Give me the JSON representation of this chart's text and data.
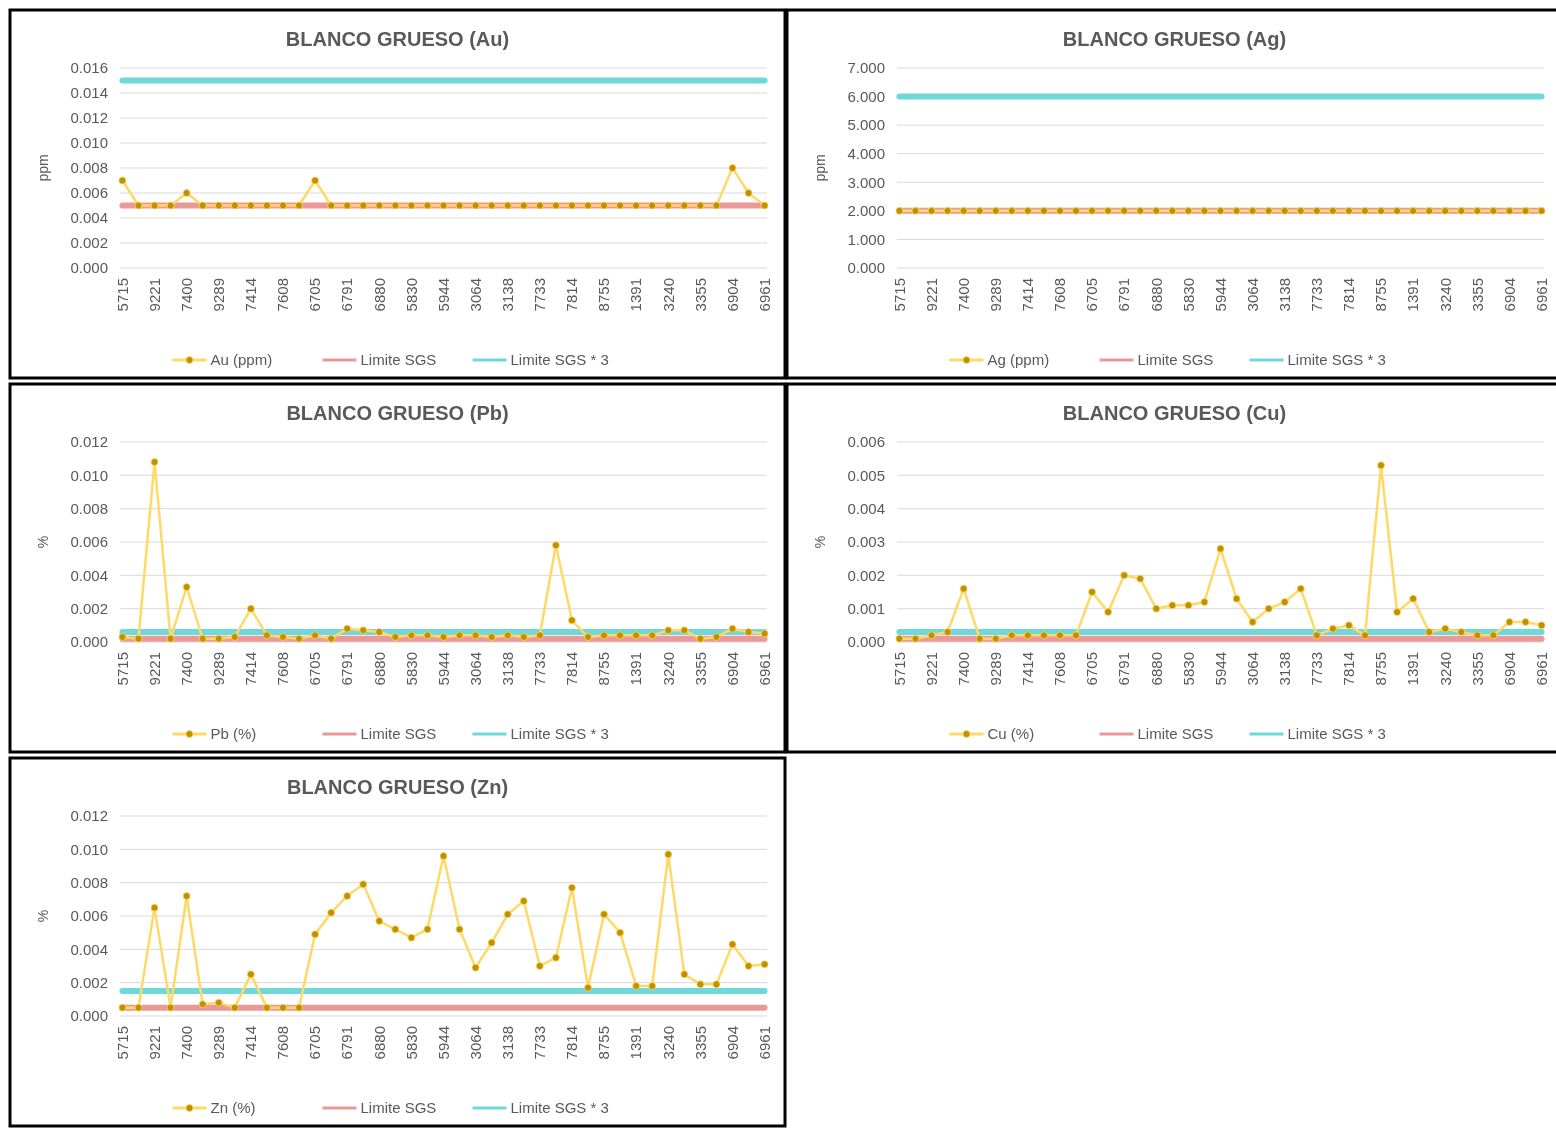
{
  "chart_data": [
    {
      "type": "line",
      "title": "BLANCO GRUESO (Au)",
      "ylabel": "ppm",
      "categories": [
        "5715",
        null,
        "9221",
        null,
        "7400",
        null,
        "9289",
        null,
        "7414",
        null,
        "7608",
        null,
        "6705",
        null,
        "6791",
        null,
        "6880",
        null,
        "5830",
        null,
        "5944",
        null,
        "3064",
        null,
        "3138",
        null,
        "7733",
        null,
        "7814",
        null,
        "8755",
        null,
        "1391",
        null,
        "3240",
        null,
        "3355",
        null,
        "6904",
        null,
        "6961"
      ],
      "ylim": [
        0,
        0.016
      ],
      "yticks": [
        {
          "value": 0,
          "label": "0.000"
        },
        {
          "value": 0.002,
          "label": "0.002"
        },
        {
          "value": 0.004,
          "label": "0.004"
        },
        {
          "value": 0.006,
          "label": "0.006"
        },
        {
          "value": 0.008,
          "label": "0.008"
        },
        {
          "value": 0.01,
          "label": "0.010"
        },
        {
          "value": 0.012,
          "label": "0.012"
        },
        {
          "value": 0.014,
          "label": "0.014"
        },
        {
          "value": 0.016,
          "label": "0.016"
        }
      ],
      "grid": "y",
      "legend": "bottom",
      "series": [
        {
          "name": "Au (ppm)",
          "color": "#ffd966",
          "marker": "circle",
          "values": [
            0.007,
            0.005,
            0.005,
            0.005,
            0.006,
            0.005,
            0.005,
            0.005,
            0.005,
            0.005,
            0.005,
            0.005,
            0.007,
            0.005,
            0.005,
            0.005,
            0.005,
            0.005,
            0.005,
            0.005,
            0.005,
            0.005,
            0.005,
            0.005,
            0.005,
            0.005,
            0.005,
            0.005,
            0.005,
            0.005,
            0.005,
            0.005,
            0.005,
            0.005,
            0.005,
            0.005,
            0.005,
            0.005,
            0.008,
            0.006,
            0.005
          ]
        },
        {
          "name": "Limite SGS",
          "color": "#ea9999",
          "marker": "none",
          "values": [
            0.005,
            0.005,
            0.005,
            0.005,
            0.005,
            0.005,
            0.005,
            0.005,
            0.005,
            0.005,
            0.005,
            0.005,
            0.005,
            0.005,
            0.005,
            0.005,
            0.005,
            0.005,
            0.005,
            0.005,
            0.005,
            0.005,
            0.005,
            0.005,
            0.005,
            0.005,
            0.005,
            0.005,
            0.005,
            0.005,
            0.005,
            0.005,
            0.005,
            0.005,
            0.005,
            0.005,
            0.005,
            0.005,
            0.005,
            0.005,
            0.005
          ]
        },
        {
          "name": "Limite SGS * 3",
          "color": "#6fd8da",
          "marker": "none",
          "values": [
            0.015,
            0.015,
            0.015,
            0.015,
            0.015,
            0.015,
            0.015,
            0.015,
            0.015,
            0.015,
            0.015,
            0.015,
            0.015,
            0.015,
            0.015,
            0.015,
            0.015,
            0.015,
            0.015,
            0.015,
            0.015,
            0.015,
            0.015,
            0.015,
            0.015,
            0.015,
            0.015,
            0.015,
            0.015,
            0.015,
            0.015,
            0.015,
            0.015,
            0.015,
            0.015,
            0.015,
            0.015,
            0.015,
            0.015,
            0.015,
            0.015
          ]
        }
      ]
    },
    {
      "type": "line",
      "title": "BLANCO GRUESO (Ag)",
      "ylabel": "ppm",
      "categories": [
        "5715",
        null,
        "9221",
        null,
        "7400",
        null,
        "9289",
        null,
        "7414",
        null,
        "7608",
        null,
        "6705",
        null,
        "6791",
        null,
        "6880",
        null,
        "5830",
        null,
        "5944",
        null,
        "3064",
        null,
        "3138",
        null,
        "7733",
        null,
        "7814",
        null,
        "8755",
        null,
        "1391",
        null,
        "3240",
        null,
        "3355",
        null,
        "6904",
        null,
        "6961"
      ],
      "ylim": [
        0,
        7
      ],
      "yticks": [
        {
          "value": 0,
          "label": "0.000"
        },
        {
          "value": 1,
          "label": "1.000"
        },
        {
          "value": 2,
          "label": "2.000"
        },
        {
          "value": 3,
          "label": "3.000"
        },
        {
          "value": 4,
          "label": "4.000"
        },
        {
          "value": 5,
          "label": "5.000"
        },
        {
          "value": 6,
          "label": "6.000"
        },
        {
          "value": 7,
          "label": "7.000"
        }
      ],
      "grid": "y",
      "legend": "bottom",
      "series": [
        {
          "name": "Ag (ppm)",
          "color": "#ffd966",
          "marker": "circle",
          "values": [
            2,
            2,
            2,
            2,
            2,
            2,
            2,
            2,
            2,
            2,
            2,
            2,
            2,
            2,
            2,
            2,
            2,
            2,
            2,
            2,
            2,
            2,
            2,
            2,
            2,
            2,
            2,
            2,
            2,
            2,
            2,
            2,
            2,
            2,
            2,
            2,
            2,
            2,
            2,
            2,
            2
          ]
        },
        {
          "name": "Limite SGS",
          "color": "#ea9999",
          "marker": "none",
          "values": [
            2,
            2,
            2,
            2,
            2,
            2,
            2,
            2,
            2,
            2,
            2,
            2,
            2,
            2,
            2,
            2,
            2,
            2,
            2,
            2,
            2,
            2,
            2,
            2,
            2,
            2,
            2,
            2,
            2,
            2,
            2,
            2,
            2,
            2,
            2,
            2,
            2,
            2,
            2,
            2,
            2
          ]
        },
        {
          "name": "Limite SGS * 3",
          "color": "#6fd8da",
          "marker": "none",
          "values": [
            6,
            6,
            6,
            6,
            6,
            6,
            6,
            6,
            6,
            6,
            6,
            6,
            6,
            6,
            6,
            6,
            6,
            6,
            6,
            6,
            6,
            6,
            6,
            6,
            6,
            6,
            6,
            6,
            6,
            6,
            6,
            6,
            6,
            6,
            6,
            6,
            6,
            6,
            6,
            6,
            6
          ]
        }
      ]
    },
    {
      "type": "line",
      "title": "BLANCO GRUESO (Pb)",
      "ylabel": "%",
      "categories": [
        "5715",
        null,
        "9221",
        null,
        "7400",
        null,
        "9289",
        null,
        "7414",
        null,
        "7608",
        null,
        "6705",
        null,
        "6791",
        null,
        "6880",
        null,
        "5830",
        null,
        "5944",
        null,
        "3064",
        null,
        "3138",
        null,
        "7733",
        null,
        "7814",
        null,
        "8755",
        null,
        "1391",
        null,
        "3240",
        null,
        "3355",
        null,
        "6904",
        null,
        "6961"
      ],
      "ylim": [
        0,
        0.012
      ],
      "yticks": [
        {
          "value": 0,
          "label": "0.000"
        },
        {
          "value": 0.002,
          "label": "0.002"
        },
        {
          "value": 0.004,
          "label": "0.004"
        },
        {
          "value": 0.006,
          "label": "0.006"
        },
        {
          "value": 0.008,
          "label": "0.008"
        },
        {
          "value": 0.01,
          "label": "0.010"
        },
        {
          "value": 0.012,
          "label": "0.012"
        }
      ],
      "grid": "y",
      "legend": "bottom",
      "series": [
        {
          "name": "Pb (%)",
          "color": "#ffd966",
          "marker": "circle",
          "values": [
            0.0003,
            0.0002,
            0.0108,
            0.0002,
            0.0033,
            0.0002,
            0.0002,
            0.0003,
            0.002,
            0.0004,
            0.0003,
            0.0002,
            0.0004,
            0.0002,
            0.0008,
            0.0007,
            0.0006,
            0.0003,
            0.0004,
            0.0004,
            0.0003,
            0.0004,
            0.0004,
            0.0003,
            0.0004,
            0.0003,
            0.0004,
            0.0058,
            0.0013,
            0.0003,
            0.0004,
            0.0004,
            0.0004,
            0.0004,
            0.0007,
            0.0007,
            0.0002,
            0.0003,
            0.0008,
            0.0006,
            0.0005
          ]
        },
        {
          "name": "Limite SGS",
          "color": "#ea9999",
          "marker": "none",
          "values": [
            0.0002,
            0.0002,
            0.0002,
            0.0002,
            0.0002,
            0.0002,
            0.0002,
            0.0002,
            0.0002,
            0.0002,
            0.0002,
            0.0002,
            0.0002,
            0.0002,
            0.0002,
            0.0002,
            0.0002,
            0.0002,
            0.0002,
            0.0002,
            0.0002,
            0.0002,
            0.0002,
            0.0002,
            0.0002,
            0.0002,
            0.0002,
            0.0002,
            0.0002,
            0.0002,
            0.0002,
            0.0002,
            0.0002,
            0.0002,
            0.0002,
            0.0002,
            0.0002,
            0.0002,
            0.0002,
            0.0002,
            0.0002
          ]
        },
        {
          "name": "Limite SGS * 3",
          "color": "#6fd8da",
          "marker": "none",
          "values": [
            0.0006,
            0.0006,
            0.0006,
            0.0006,
            0.0006,
            0.0006,
            0.0006,
            0.0006,
            0.0006,
            0.0006,
            0.0006,
            0.0006,
            0.0006,
            0.0006,
            0.0006,
            0.0006,
            0.0006,
            0.0006,
            0.0006,
            0.0006,
            0.0006,
            0.0006,
            0.0006,
            0.0006,
            0.0006,
            0.0006,
            0.0006,
            0.0006,
            0.0006,
            0.0006,
            0.0006,
            0.0006,
            0.0006,
            0.0006,
            0.0006,
            0.0006,
            0.0006,
            0.0006,
            0.0006,
            0.0006,
            0.0006
          ]
        }
      ]
    },
    {
      "type": "line",
      "title": "BLANCO GRUESO (Cu)",
      "ylabel": "%",
      "categories": [
        "5715",
        null,
        "9221",
        null,
        "7400",
        null,
        "9289",
        null,
        "7414",
        null,
        "7608",
        null,
        "6705",
        null,
        "6791",
        null,
        "6880",
        null,
        "5830",
        null,
        "5944",
        null,
        "3064",
        null,
        "3138",
        null,
        "7733",
        null,
        "7814",
        null,
        "8755",
        null,
        "1391",
        null,
        "3240",
        null,
        "3355",
        null,
        "6904",
        null,
        "6961"
      ],
      "ylim": [
        0,
        0.006
      ],
      "yticks": [
        {
          "value": 0,
          "label": "0.000"
        },
        {
          "value": 0.001,
          "label": "0.001"
        },
        {
          "value": 0.002,
          "label": "0.002"
        },
        {
          "value": 0.003,
          "label": "0.003"
        },
        {
          "value": 0.004,
          "label": "0.004"
        },
        {
          "value": 0.005,
          "label": "0.005"
        },
        {
          "value": 0.006,
          "label": "0.006"
        }
      ],
      "grid": "y",
      "legend": "bottom",
      "series": [
        {
          "name": "Cu (%)",
          "color": "#ffd966",
          "marker": "circle",
          "values": [
            0.0001,
            0.0001,
            0.0002,
            0.0003,
            0.0016,
            0.0001,
            0.0001,
            0.0002,
            0.0002,
            0.0002,
            0.0002,
            0.0002,
            0.0015,
            0.0009,
            0.002,
            0.0019,
            0.001,
            0.0011,
            0.0011,
            0.0012,
            0.0028,
            0.0013,
            0.0006,
            0.001,
            0.0012,
            0.0016,
            0.0002,
            0.0004,
            0.0005,
            0.0002,
            0.0053,
            0.0009,
            0.0013,
            0.0003,
            0.0004,
            0.0003,
            0.0002,
            0.0002,
            0.0006,
            0.0006,
            0.0005
          ]
        },
        {
          "name": "Limite SGS",
          "color": "#ea9999",
          "marker": "none",
          "values": [
            0.0001,
            0.0001,
            0.0001,
            0.0001,
            0.0001,
            0.0001,
            0.0001,
            0.0001,
            0.0001,
            0.0001,
            0.0001,
            0.0001,
            0.0001,
            0.0001,
            0.0001,
            0.0001,
            0.0001,
            0.0001,
            0.0001,
            0.0001,
            0.0001,
            0.0001,
            0.0001,
            0.0001,
            0.0001,
            0.0001,
            0.0001,
            0.0001,
            0.0001,
            0.0001,
            0.0001,
            0.0001,
            0.0001,
            0.0001,
            0.0001,
            0.0001,
            0.0001,
            0.0001,
            0.0001,
            0.0001,
            0.0001
          ]
        },
        {
          "name": "Limite SGS * 3",
          "color": "#6fd8da",
          "marker": "none",
          "values": [
            0.0003,
            0.0003,
            0.0003,
            0.0003,
            0.0003,
            0.0003,
            0.0003,
            0.0003,
            0.0003,
            0.0003,
            0.0003,
            0.0003,
            0.0003,
            0.0003,
            0.0003,
            0.0003,
            0.0003,
            0.0003,
            0.0003,
            0.0003,
            0.0003,
            0.0003,
            0.0003,
            0.0003,
            0.0003,
            0.0003,
            0.0003,
            0.0003,
            0.0003,
            0.0003,
            0.0003,
            0.0003,
            0.0003,
            0.0003,
            0.0003,
            0.0003,
            0.0003,
            0.0003,
            0.0003,
            0.0003,
            0.0003
          ]
        }
      ]
    },
    {
      "type": "line",
      "title": "BLANCO GRUESO (Zn)",
      "ylabel": "%",
      "categories": [
        "5715",
        null,
        "9221",
        null,
        "7400",
        null,
        "9289",
        null,
        "7414",
        null,
        "7608",
        null,
        "6705",
        null,
        "6791",
        null,
        "6880",
        null,
        "5830",
        null,
        "5944",
        null,
        "3064",
        null,
        "3138",
        null,
        "7733",
        null,
        "7814",
        null,
        "8755",
        null,
        "1391",
        null,
        "3240",
        null,
        "3355",
        null,
        "6904",
        null,
        "6961"
      ],
      "ylim": [
        0,
        0.012
      ],
      "yticks": [
        {
          "value": 0,
          "label": "0.000"
        },
        {
          "value": 0.002,
          "label": "0.002"
        },
        {
          "value": 0.004,
          "label": "0.004"
        },
        {
          "value": 0.006,
          "label": "0.006"
        },
        {
          "value": 0.008,
          "label": "0.008"
        },
        {
          "value": 0.01,
          "label": "0.010"
        },
        {
          "value": 0.012,
          "label": "0.012"
        }
      ],
      "grid": "y",
      "legend": "bottom",
      "series": [
        {
          "name": "Zn (%)",
          "color": "#ffd966",
          "marker": "circle",
          "values": [
            0.0005,
            0.0005,
            0.0065,
            0.0005,
            0.0072,
            0.0007,
            0.0008,
            0.0005,
            0.0025,
            0.0005,
            0.0005,
            0.0005,
            0.0049,
            0.0062,
            0.0072,
            0.0079,
            0.0057,
            0.0052,
            0.0047,
            0.0052,
            0.0096,
            0.0052,
            0.0029,
            0.0044,
            0.0061,
            0.0069,
            0.003,
            0.0035,
            0.0077,
            0.0017,
            0.0061,
            0.005,
            0.0018,
            0.0018,
            0.0097,
            0.0025,
            0.0019,
            0.0019,
            0.0043,
            0.003,
            0.0031
          ]
        },
        {
          "name": "Limite SGS",
          "color": "#ea9999",
          "marker": "none",
          "values": [
            0.0005,
            0.0005,
            0.0005,
            0.0005,
            0.0005,
            0.0005,
            0.0005,
            0.0005,
            0.0005,
            0.0005,
            0.0005,
            0.0005,
            0.0005,
            0.0005,
            0.0005,
            0.0005,
            0.0005,
            0.0005,
            0.0005,
            0.0005,
            0.0005,
            0.0005,
            0.0005,
            0.0005,
            0.0005,
            0.0005,
            0.0005,
            0.0005,
            0.0005,
            0.0005,
            0.0005,
            0.0005,
            0.0005,
            0.0005,
            0.0005,
            0.0005,
            0.0005,
            0.0005,
            0.0005,
            0.0005,
            0.0005
          ]
        },
        {
          "name": "Limite SGS * 3",
          "color": "#6fd8da",
          "marker": "none",
          "values": [
            0.0015,
            0.0015,
            0.0015,
            0.0015,
            0.0015,
            0.0015,
            0.0015,
            0.0015,
            0.0015,
            0.0015,
            0.0015,
            0.0015,
            0.0015,
            0.0015,
            0.0015,
            0.0015,
            0.0015,
            0.0015,
            0.0015,
            0.0015,
            0.0015,
            0.0015,
            0.0015,
            0.0015,
            0.0015,
            0.0015,
            0.0015,
            0.0015,
            0.0015,
            0.0015,
            0.0015,
            0.0015,
            0.0015,
            0.0015,
            0.0015,
            0.0015,
            0.0015,
            0.0015,
            0.0015,
            0.0015,
            0.0015
          ]
        }
      ]
    }
  ]
}
